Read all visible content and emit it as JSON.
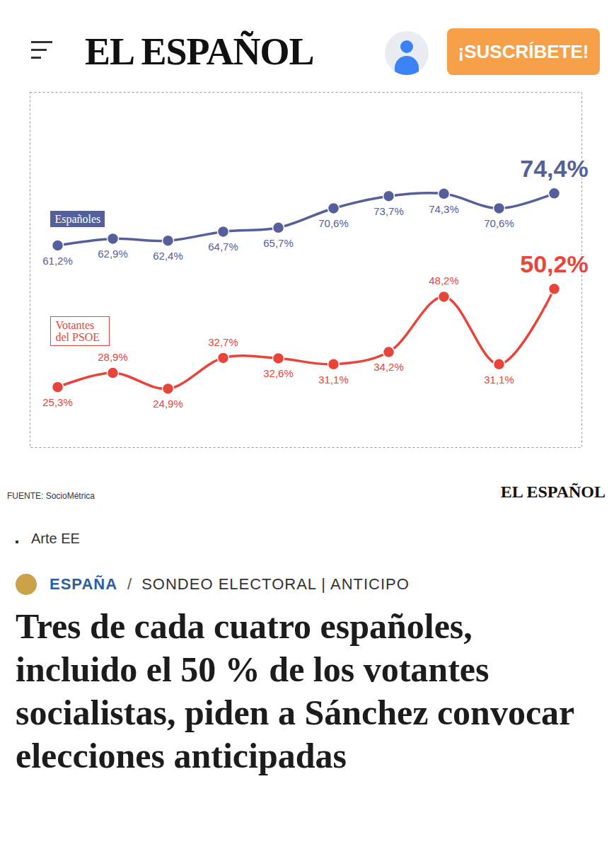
{
  "header": {
    "logo": "EL ESPAÑOL",
    "button": "¡SUSCRÍBETE!"
  },
  "chart_data": {
    "type": "line",
    "categories": [
      null,
      null,
      null,
      null,
      null,
      null,
      null,
      null,
      null,
      null
    ],
    "series": [
      {
        "name": "Españoles",
        "color": "#55609a",
        "marker": "circle",
        "values": [
          61.2,
          62.9,
          62.4,
          64.7,
          65.7,
          70.6,
          73.7,
          74.3,
          70.6,
          74.4
        ],
        "value_labels": [
          "61,2%",
          "62,9%",
          "62,4%",
          "64,7%",
          "65,7%",
          "70,6%",
          "73,7%",
          "74,3%",
          "70,6%",
          "74,4%"
        ]
      },
      {
        "name": "Votantes del PSOE",
        "color": "#e8443a",
        "marker": "circle",
        "values": [
          25.3,
          28.9,
          24.9,
          32.7,
          32.6,
          31.1,
          34.2,
          48.2,
          31.1,
          50.2
        ],
        "value_labels": [
          "25,3%",
          "28,9%",
          "24,9%",
          "32,7%",
          "32,6%",
          "31,1%",
          "34,2%",
          "48,2%",
          "31,1%",
          "50,2%"
        ]
      }
    ],
    "ylim": [
      10,
      100
    ],
    "grid": false,
    "data_labels": true,
    "tick_labels": false,
    "source": "FUENTE: SocioMétrica",
    "credit": "EL ESPAÑOL"
  },
  "caption": "Arte EE",
  "article": {
    "section": "ESPAÑA",
    "separator": "/",
    "tags": "SONDEO ELECTORAL | ANTICIPO",
    "headline": "Tres de cada cuatro españoles, incluido el 50 % de los votantes socialistas, piden a Sánchez convocar elecciones anticipadas"
  }
}
